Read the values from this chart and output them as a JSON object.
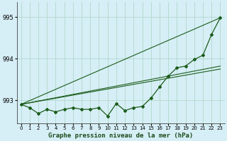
{
  "title": "Graphe pression niveau de la mer (hPa)",
  "bg_color": "#d6eef5",
  "grid_color": "#b0d8cc",
  "line_color": "#1a5c1a",
  "ylim": [
    992.45,
    995.35
  ],
  "xlim": [
    -0.5,
    23.5
  ],
  "yticks": [
    993,
    994,
    995
  ],
  "xticks": [
    0,
    1,
    2,
    3,
    4,
    5,
    6,
    7,
    8,
    9,
    10,
    11,
    12,
    13,
    14,
    15,
    16,
    17,
    18,
    19,
    20,
    21,
    22,
    23
  ],
  "hours": [
    0,
    1,
    2,
    3,
    4,
    5,
    6,
    7,
    8,
    9,
    10,
    11,
    12,
    13,
    14,
    15,
    16,
    17,
    18,
    19,
    20,
    21,
    22,
    23
  ],
  "pressure": [
    992.9,
    992.82,
    992.68,
    992.78,
    992.72,
    992.78,
    992.82,
    992.78,
    992.78,
    992.82,
    992.62,
    992.92,
    992.75,
    992.82,
    992.85,
    993.05,
    993.32,
    993.58,
    993.78,
    993.82,
    993.98,
    994.08,
    994.58,
    994.98
  ],
  "trend1_x": [
    0,
    23
  ],
  "trend1_y": [
    992.9,
    994.98
  ],
  "trend2_x": [
    0,
    23
  ],
  "trend2_y": [
    992.9,
    993.82
  ],
  "trend3_x": [
    0,
    23
  ],
  "trend3_y": [
    992.9,
    993.75
  ],
  "ylabel_fontsize": 6,
  "xlabel_fontsize": 6,
  "title_fontsize": 6.5
}
